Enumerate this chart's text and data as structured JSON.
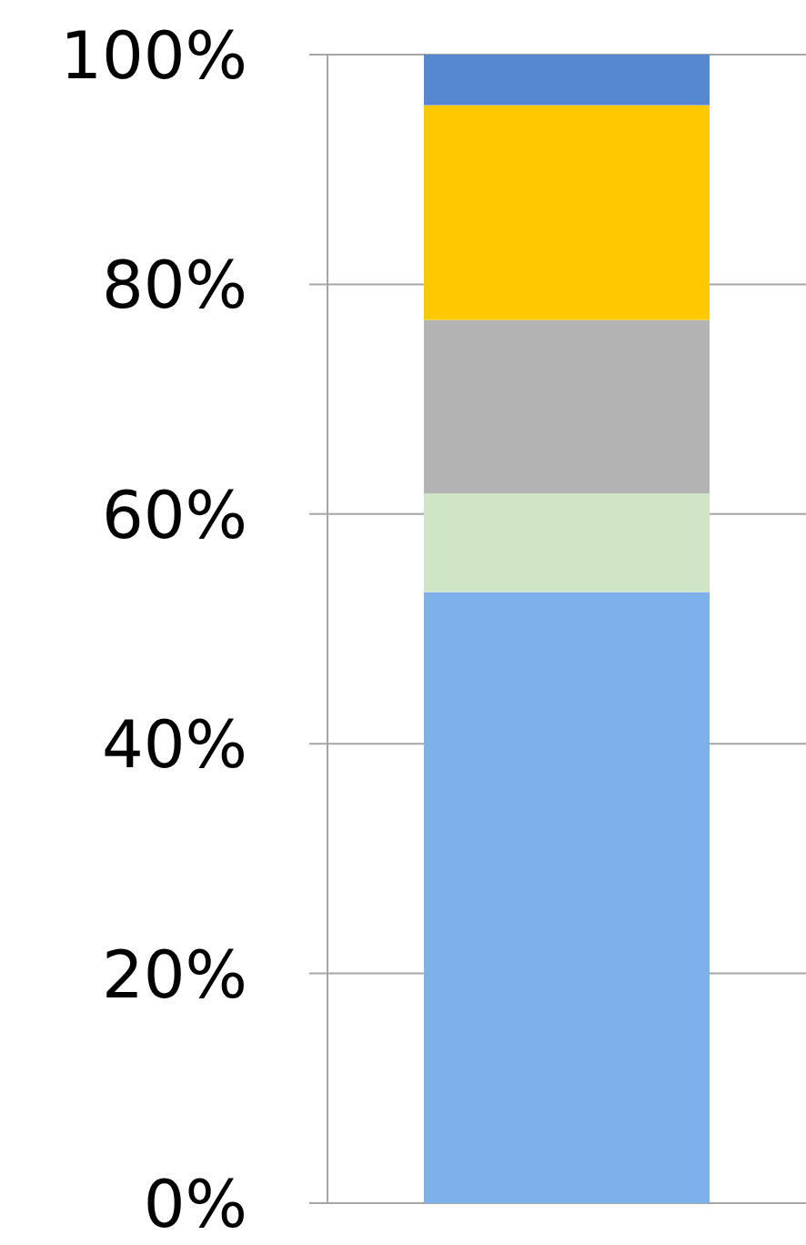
{
  "chart_data": {
    "type": "bar",
    "stacked": true,
    "categories": [
      null
    ],
    "series": [
      {
        "color": "#7eb1ec",
        "values": [
          53.2
        ]
      },
      {
        "color": "#cfe5c6",
        "values": [
          8.6
        ]
      },
      {
        "color": "#b3b3b3",
        "values": [
          15.1
        ]
      },
      {
        "color": "#ffc800",
        "values": [
          18.7
        ]
      },
      {
        "color": "#5588d1",
        "values": [
          4.4
        ]
      }
    ],
    "ylim": [
      0,
      100
    ],
    "yticks": [
      {
        "value": 0,
        "label": "0%"
      },
      {
        "value": 20,
        "label": "20%"
      },
      {
        "value": 40,
        "label": "40%"
      },
      {
        "value": 60,
        "label": "60%"
      },
      {
        "value": 80,
        "label": "80%"
      },
      {
        "value": 100,
        "label": "100%"
      }
    ],
    "grid": "y",
    "tick_labels": "y"
  }
}
